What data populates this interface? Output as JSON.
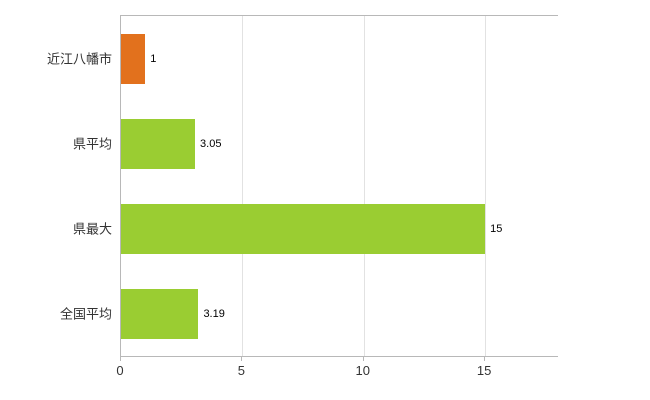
{
  "chart_data": {
    "type": "bar",
    "orientation": "horizontal",
    "title": "",
    "xlabel": "",
    "ylabel": "",
    "categories": [
      "近江八幡市",
      "県平均",
      "県最大",
      "全国平均"
    ],
    "values": [
      1,
      3.05,
      15,
      3.19
    ],
    "value_labels": [
      "1",
      "3.05",
      "15",
      "3.19"
    ],
    "bar_colors": [
      "#e2711d",
      "#9acd32",
      "#9acd32",
      "#9acd32"
    ],
    "highlight_color": "#e2711d",
    "series_color": "#9acd32",
    "x_tick_labels": [
      "0",
      "5",
      "10",
      "15"
    ],
    "x_tick_values": [
      0,
      5,
      10,
      15
    ],
    "xlim": [
      0,
      18
    ],
    "grid": "vertical-gridlines",
    "legend": "none",
    "background": "#ffffff"
  }
}
